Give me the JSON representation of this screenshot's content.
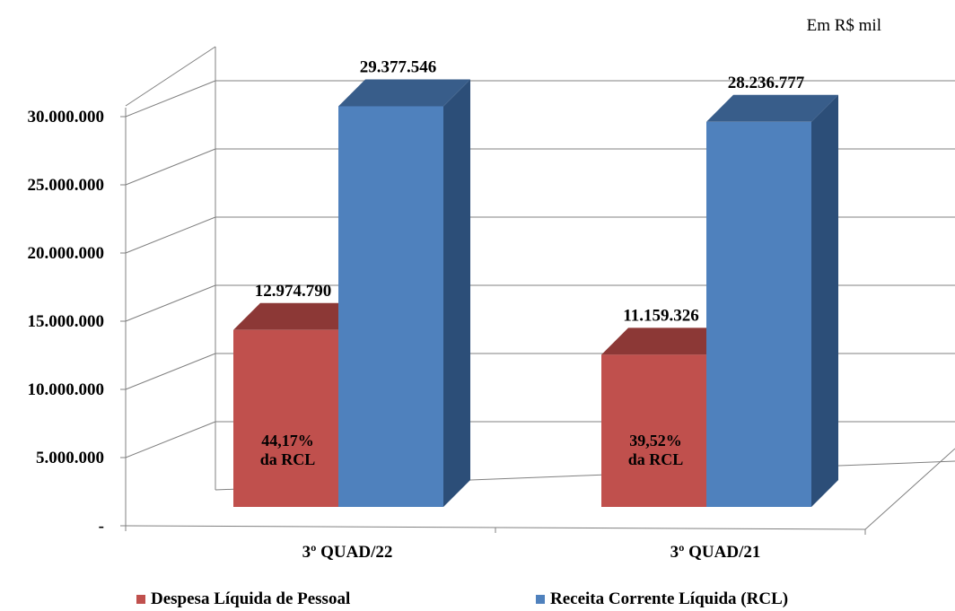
{
  "unit_label": "Em R$ mil",
  "colors": {
    "despesa_front": "#C0504D",
    "despesa_side": "#8C3836",
    "despesa_top": "#8C3836",
    "rcl_front": "#4F81BD",
    "rcl_side": "#2C4E78",
    "rcl_top": "#385D8A",
    "grid": "#808080",
    "axis": "#808080"
  },
  "chart_data": {
    "type": "bar",
    "categories": [
      "3º QUAD/22",
      "3º QUAD/21"
    ],
    "series": [
      {
        "name": "Despesa Líquida de Pessoal",
        "values": [
          12974790,
          11159326
        ],
        "value_labels": [
          "12.974.790",
          "11.159.326"
        ],
        "inner_labels": [
          [
            "44,17%",
            "da RCL"
          ],
          [
            "39,52%",
            "da RCL"
          ]
        ]
      },
      {
        "name": "Receita Corrente Líquida (RCL)",
        "values": [
          29377546,
          28236777
        ],
        "value_labels": [
          "29.377.546",
          "28.236.777"
        ]
      }
    ],
    "y_ticks": [
      {
        "value": 0,
        "label": "-"
      },
      {
        "value": 5000000,
        "label": "5.000.000"
      },
      {
        "value": 10000000,
        "label": "10.000.000"
      },
      {
        "value": 15000000,
        "label": "15.000.000"
      },
      {
        "value": 20000000,
        "label": "20.000.000"
      },
      {
        "value": 25000000,
        "label": "25.000.000"
      },
      {
        "value": 30000000,
        "label": "30.000.000"
      }
    ],
    "ylim": [
      0,
      30000000
    ],
    "grid": true,
    "legend_position": "bottom",
    "style": "3d"
  }
}
